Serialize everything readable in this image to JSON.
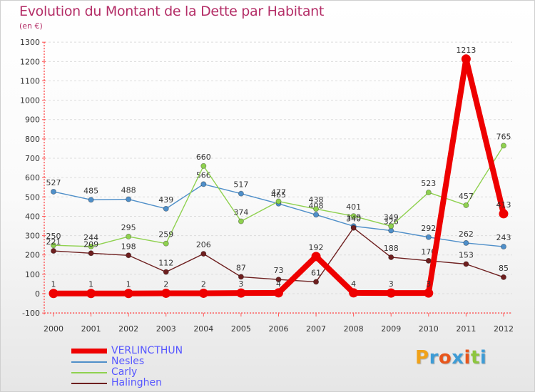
{
  "title": "Evolution du Montant de la Dette par Habitant",
  "subtitle": "(en €)",
  "brand": {
    "text": "Proxiti",
    "letter_colors": [
      "#f0a21a",
      "#3e9cd6",
      "#e8561c",
      "#3e9cd6",
      "#e8561c",
      "#8dc63f",
      "#3e9cd6"
    ]
  },
  "chart_data": {
    "type": "line",
    "title": "Evolution du Montant de la Dette par Habitant",
    "ylabel": "(en €)",
    "xlabel": "",
    "x": [
      "2000",
      "2001",
      "2002",
      "2003",
      "2004",
      "2005",
      "2006",
      "2007",
      "2008",
      "2009",
      "2010",
      "2011",
      "2012"
    ],
    "ylim": [
      -100,
      1300
    ],
    "yticks": [
      "-100",
      "0",
      "100",
      "200",
      "300",
      "400",
      "500",
      "600",
      "700",
      "800",
      "900",
      "1000",
      "1100",
      "1200",
      "1300"
    ],
    "grid": "horizontal dashed",
    "legend_position": "bottom-left",
    "series": [
      {
        "name": "Nesles",
        "color": "#4f8fc9",
        "emphasis": false,
        "values": [
          527,
          485,
          488,
          439,
          566,
          517,
          465,
          408,
          349,
          326,
          292,
          262,
          243
        ],
        "labels": [
          "527",
          "485",
          "488",
          "439",
          "566",
          "517",
          "465",
          "408",
          "349",
          "326",
          "292",
          "262",
          "243"
        ]
      },
      {
        "name": "Carly",
        "color": "#8fd14f",
        "emphasis": false,
        "values": [
          250,
          244,
          295,
          259,
          660,
          374,
          477,
          438,
          401,
          349,
          523,
          457,
          765
        ],
        "labels": [
          "250",
          "244",
          "295",
          "259",
          "660",
          "374",
          "477",
          "438",
          "401",
          "349",
          "523",
          "457",
          "765"
        ]
      },
      {
        "name": "Halinghen",
        "color": "#6e1f1f",
        "emphasis": false,
        "values": [
          221,
          209,
          198,
          112,
          206,
          87,
          73,
          61,
          340,
          188,
          170,
          153,
          85
        ],
        "labels": [
          "221",
          "209",
          "198",
          "112",
          "206",
          "87",
          "73",
          "61",
          "340",
          "188",
          "170",
          "153",
          "85"
        ]
      },
      {
        "name": "VERLINCTHUN",
        "color": "#ee0000",
        "emphasis": true,
        "values": [
          1,
          1,
          1,
          2,
          2,
          3,
          4,
          192,
          4,
          3,
          3,
          1213,
          413
        ],
        "labels": [
          "1",
          "1",
          "1",
          "2",
          "2",
          "3",
          "4",
          "192",
          "4",
          "3",
          "3",
          "1213",
          "413"
        ]
      }
    ],
    "legend_order": [
      "VERLINCTHUN",
      "Nesles",
      "Carly",
      "Halinghen"
    ]
  }
}
